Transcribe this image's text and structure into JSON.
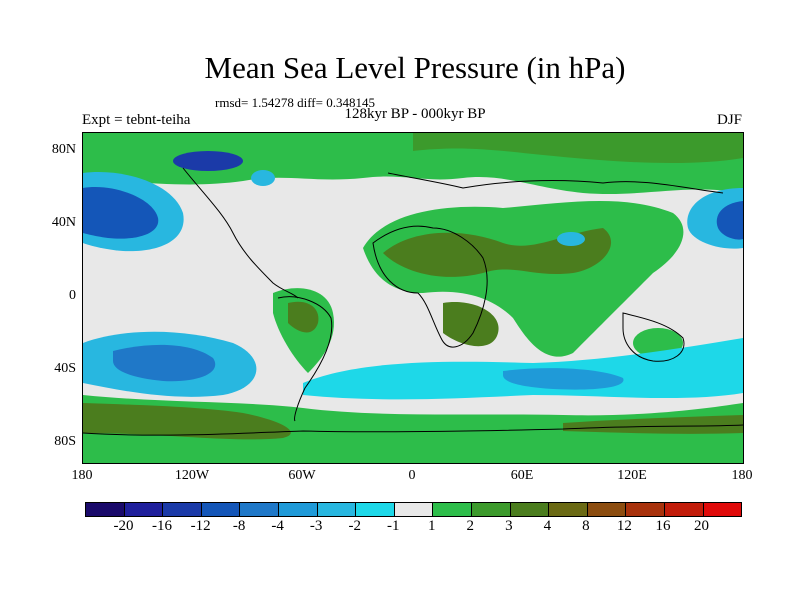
{
  "title": "Mean Sea Level Pressure (in hPa)",
  "stats": "rmsd= 1.54278 diff= 0.348145",
  "period": "128kyr BP - 000kyr BP",
  "experiment": "Expt = tebnt-teiha",
  "season": "DJF",
  "lat_labels": [
    "80N",
    "40N",
    "0",
    "40S",
    "80S"
  ],
  "lon_labels": [
    "180",
    "120W",
    "60W",
    "0",
    "60E",
    "120E",
    "180"
  ],
  "colorbar": {
    "labels": [
      "-20",
      "-16",
      "-12",
      "-8",
      "-4",
      "-3",
      "-2",
      "-1",
      "1",
      "2",
      "3",
      "4",
      "8",
      "12",
      "16",
      "20"
    ],
    "colors": [
      "#1a0a6b",
      "#1f1f9c",
      "#1b3aa8",
      "#1456b8",
      "#1f78c8",
      "#1f9ad8",
      "#28b7e0",
      "#1ed8e8",
      "#e8e8e8",
      "#2dbd4a",
      "#3c9a2c",
      "#4b7d1e",
      "#6b6a14",
      "#8c4d10",
      "#a8320c",
      "#c21c0a",
      "#e00a0a"
    ]
  }
}
